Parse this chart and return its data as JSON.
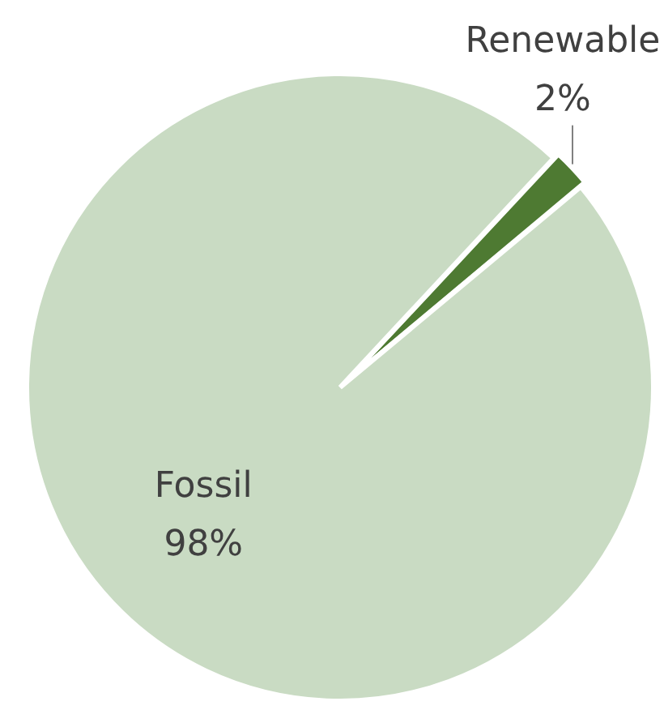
{
  "chart_data": {
    "type": "pie",
    "categories": [
      "Renewable",
      "Fossil"
    ],
    "values": [
      2,
      98
    ],
    "colors": [
      "#4e7a32",
      "#c9dbc3"
    ],
    "value_labels": [
      "2%",
      "98%"
    ],
    "legend": false
  }
}
